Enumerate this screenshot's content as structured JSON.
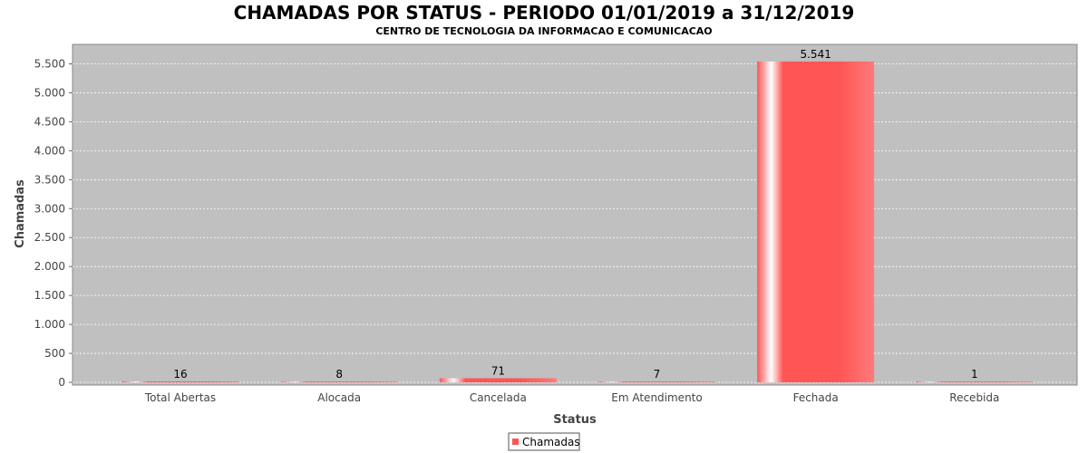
{
  "chart_data": {
    "type": "bar",
    "title": "CHAMADAS POR STATUS - PERIODO 01/01/2019 a 31/12/2019",
    "subtitle": "CENTRO DE TECNOLOGIA DA INFORMACAO E COMUNICACAO",
    "xlabel": "Status",
    "ylabel": "Chamadas",
    "categories": [
      "Total Abertas",
      "Alocada",
      "Cancelada",
      "Em Atendimento",
      "Fechada",
      "Recebida"
    ],
    "series": [
      {
        "name": "Chamadas",
        "values": [
          16,
          8,
          71,
          7,
          5541,
          1
        ],
        "labels": [
          "16",
          "8",
          "71",
          "7",
          "5.541",
          "1"
        ]
      }
    ],
    "ylim": [
      0,
      5800
    ],
    "yticks": [
      0,
      500,
      1000,
      1500,
      2000,
      2500,
      3000,
      3500,
      4000,
      4500,
      5000,
      5500
    ],
    "ytick_labels": [
      "0",
      "500",
      "1.000",
      "1.500",
      "2.000",
      "2.500",
      "3.000",
      "3.500",
      "4.000",
      "4.500",
      "5.000",
      "5.500"
    ],
    "grid": true,
    "legend_position": "bottom-center",
    "colors": {
      "bar": "#ff5555",
      "plot_background": "#c0c0c0",
      "grid": "#ffffff"
    }
  }
}
